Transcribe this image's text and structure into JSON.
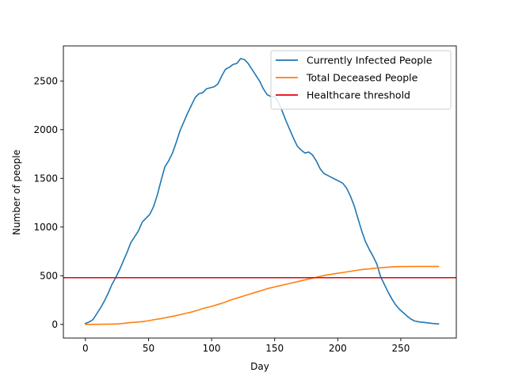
{
  "chart_data": {
    "type": "line",
    "title": "",
    "xlabel": "Day",
    "ylabel": "Number of people",
    "xlim": [
      -17.5,
      294
    ],
    "ylim": [
      -140,
      2860
    ],
    "xticks": [
      0,
      50,
      100,
      150,
      200,
      250
    ],
    "yticks": [
      0,
      500,
      1000,
      1500,
      2000,
      2500
    ],
    "grid": false,
    "legend": "top-right",
    "series": [
      {
        "name": "Currently Infected People",
        "color": "#1f77b4",
        "points": [
          [
            0,
            10
          ],
          [
            3,
            25
          ],
          [
            6,
            50
          ],
          [
            9,
            110
          ],
          [
            12,
            170
          ],
          [
            15,
            240
          ],
          [
            18,
            320
          ],
          [
            21,
            410
          ],
          [
            24,
            480
          ],
          [
            27,
            560
          ],
          [
            30,
            650
          ],
          [
            33,
            740
          ],
          [
            36,
            840
          ],
          [
            39,
            900
          ],
          [
            42,
            960
          ],
          [
            45,
            1050
          ],
          [
            48,
            1090
          ],
          [
            51,
            1130
          ],
          [
            54,
            1210
          ],
          [
            57,
            1330
          ],
          [
            60,
            1480
          ],
          [
            63,
            1620
          ],
          [
            66,
            1680
          ],
          [
            69,
            1760
          ],
          [
            72,
            1870
          ],
          [
            75,
            1990
          ],
          [
            78,
            2080
          ],
          [
            81,
            2170
          ],
          [
            84,
            2250
          ],
          [
            87,
            2330
          ],
          [
            90,
            2370
          ],
          [
            93,
            2380
          ],
          [
            96,
            2420
          ],
          [
            99,
            2430
          ],
          [
            102,
            2440
          ],
          [
            105,
            2470
          ],
          [
            108,
            2550
          ],
          [
            111,
            2620
          ],
          [
            114,
            2640
          ],
          [
            117,
            2670
          ],
          [
            120,
            2680
          ],
          [
            123,
            2730
          ],
          [
            126,
            2720
          ],
          [
            129,
            2680
          ],
          [
            132,
            2620
          ],
          [
            135,
            2560
          ],
          [
            138,
            2500
          ],
          [
            141,
            2420
          ],
          [
            144,
            2360
          ],
          [
            147,
            2340
          ],
          [
            150,
            2340
          ],
          [
            153,
            2280
          ],
          [
            156,
            2190
          ],
          [
            159,
            2090
          ],
          [
            162,
            2000
          ],
          [
            165,
            1910
          ],
          [
            168,
            1830
          ],
          [
            171,
            1790
          ],
          [
            174,
            1760
          ],
          [
            177,
            1770
          ],
          [
            180,
            1740
          ],
          [
            183,
            1680
          ],
          [
            186,
            1600
          ],
          [
            189,
            1550
          ],
          [
            192,
            1530
          ],
          [
            195,
            1510
          ],
          [
            198,
            1490
          ],
          [
            201,
            1470
          ],
          [
            204,
            1450
          ],
          [
            207,
            1400
          ],
          [
            210,
            1320
          ],
          [
            213,
            1220
          ],
          [
            216,
            1090
          ],
          [
            219,
            960
          ],
          [
            222,
            850
          ],
          [
            225,
            770
          ],
          [
            228,
            700
          ],
          [
            231,
            620
          ],
          [
            234,
            490
          ],
          [
            237,
            410
          ],
          [
            240,
            330
          ],
          [
            243,
            260
          ],
          [
            246,
            200
          ],
          [
            249,
            155
          ],
          [
            252,
            120
          ],
          [
            255,
            85
          ],
          [
            258,
            55
          ],
          [
            261,
            35
          ],
          [
            265,
            25
          ],
          [
            270,
            18
          ],
          [
            275,
            10
          ],
          [
            280,
            5
          ]
        ]
      },
      {
        "name": "Total Deceased People",
        "color": "#ff7f0e",
        "points": [
          [
            0,
            0
          ],
          [
            10,
            1
          ],
          [
            20,
            3
          ],
          [
            25,
            5
          ],
          [
            30,
            10
          ],
          [
            35,
            18
          ],
          [
            40,
            23
          ],
          [
            45,
            28
          ],
          [
            50,
            38
          ],
          [
            55,
            50
          ],
          [
            60,
            60
          ],
          [
            65,
            73
          ],
          [
            70,
            85
          ],
          [
            75,
            100
          ],
          [
            80,
            115
          ],
          [
            85,
            130
          ],
          [
            90,
            150
          ],
          [
            95,
            170
          ],
          [
            100,
            185
          ],
          [
            105,
            205
          ],
          [
            110,
            225
          ],
          [
            115,
            250
          ],
          [
            120,
            270
          ],
          [
            125,
            290
          ],
          [
            130,
            310
          ],
          [
            135,
            330
          ],
          [
            140,
            350
          ],
          [
            145,
            370
          ],
          [
            150,
            385
          ],
          [
            155,
            400
          ],
          [
            160,
            415
          ],
          [
            165,
            430
          ],
          [
            170,
            445
          ],
          [
            175,
            460
          ],
          [
            180,
            475
          ],
          [
            185,
            490
          ],
          [
            190,
            505
          ],
          [
            195,
            515
          ],
          [
            200,
            525
          ],
          [
            205,
            535
          ],
          [
            210,
            545
          ],
          [
            215,
            555
          ],
          [
            220,
            565
          ],
          [
            225,
            570
          ],
          [
            230,
            578
          ],
          [
            235,
            583
          ],
          [
            240,
            588
          ],
          [
            245,
            592
          ],
          [
            250,
            594
          ],
          [
            260,
            595
          ],
          [
            270,
            595
          ],
          [
            280,
            595
          ]
        ]
      },
      {
        "name": "Healthcare threshold",
        "color": "#e8000b",
        "horizontal": true,
        "y": 480
      }
    ]
  }
}
